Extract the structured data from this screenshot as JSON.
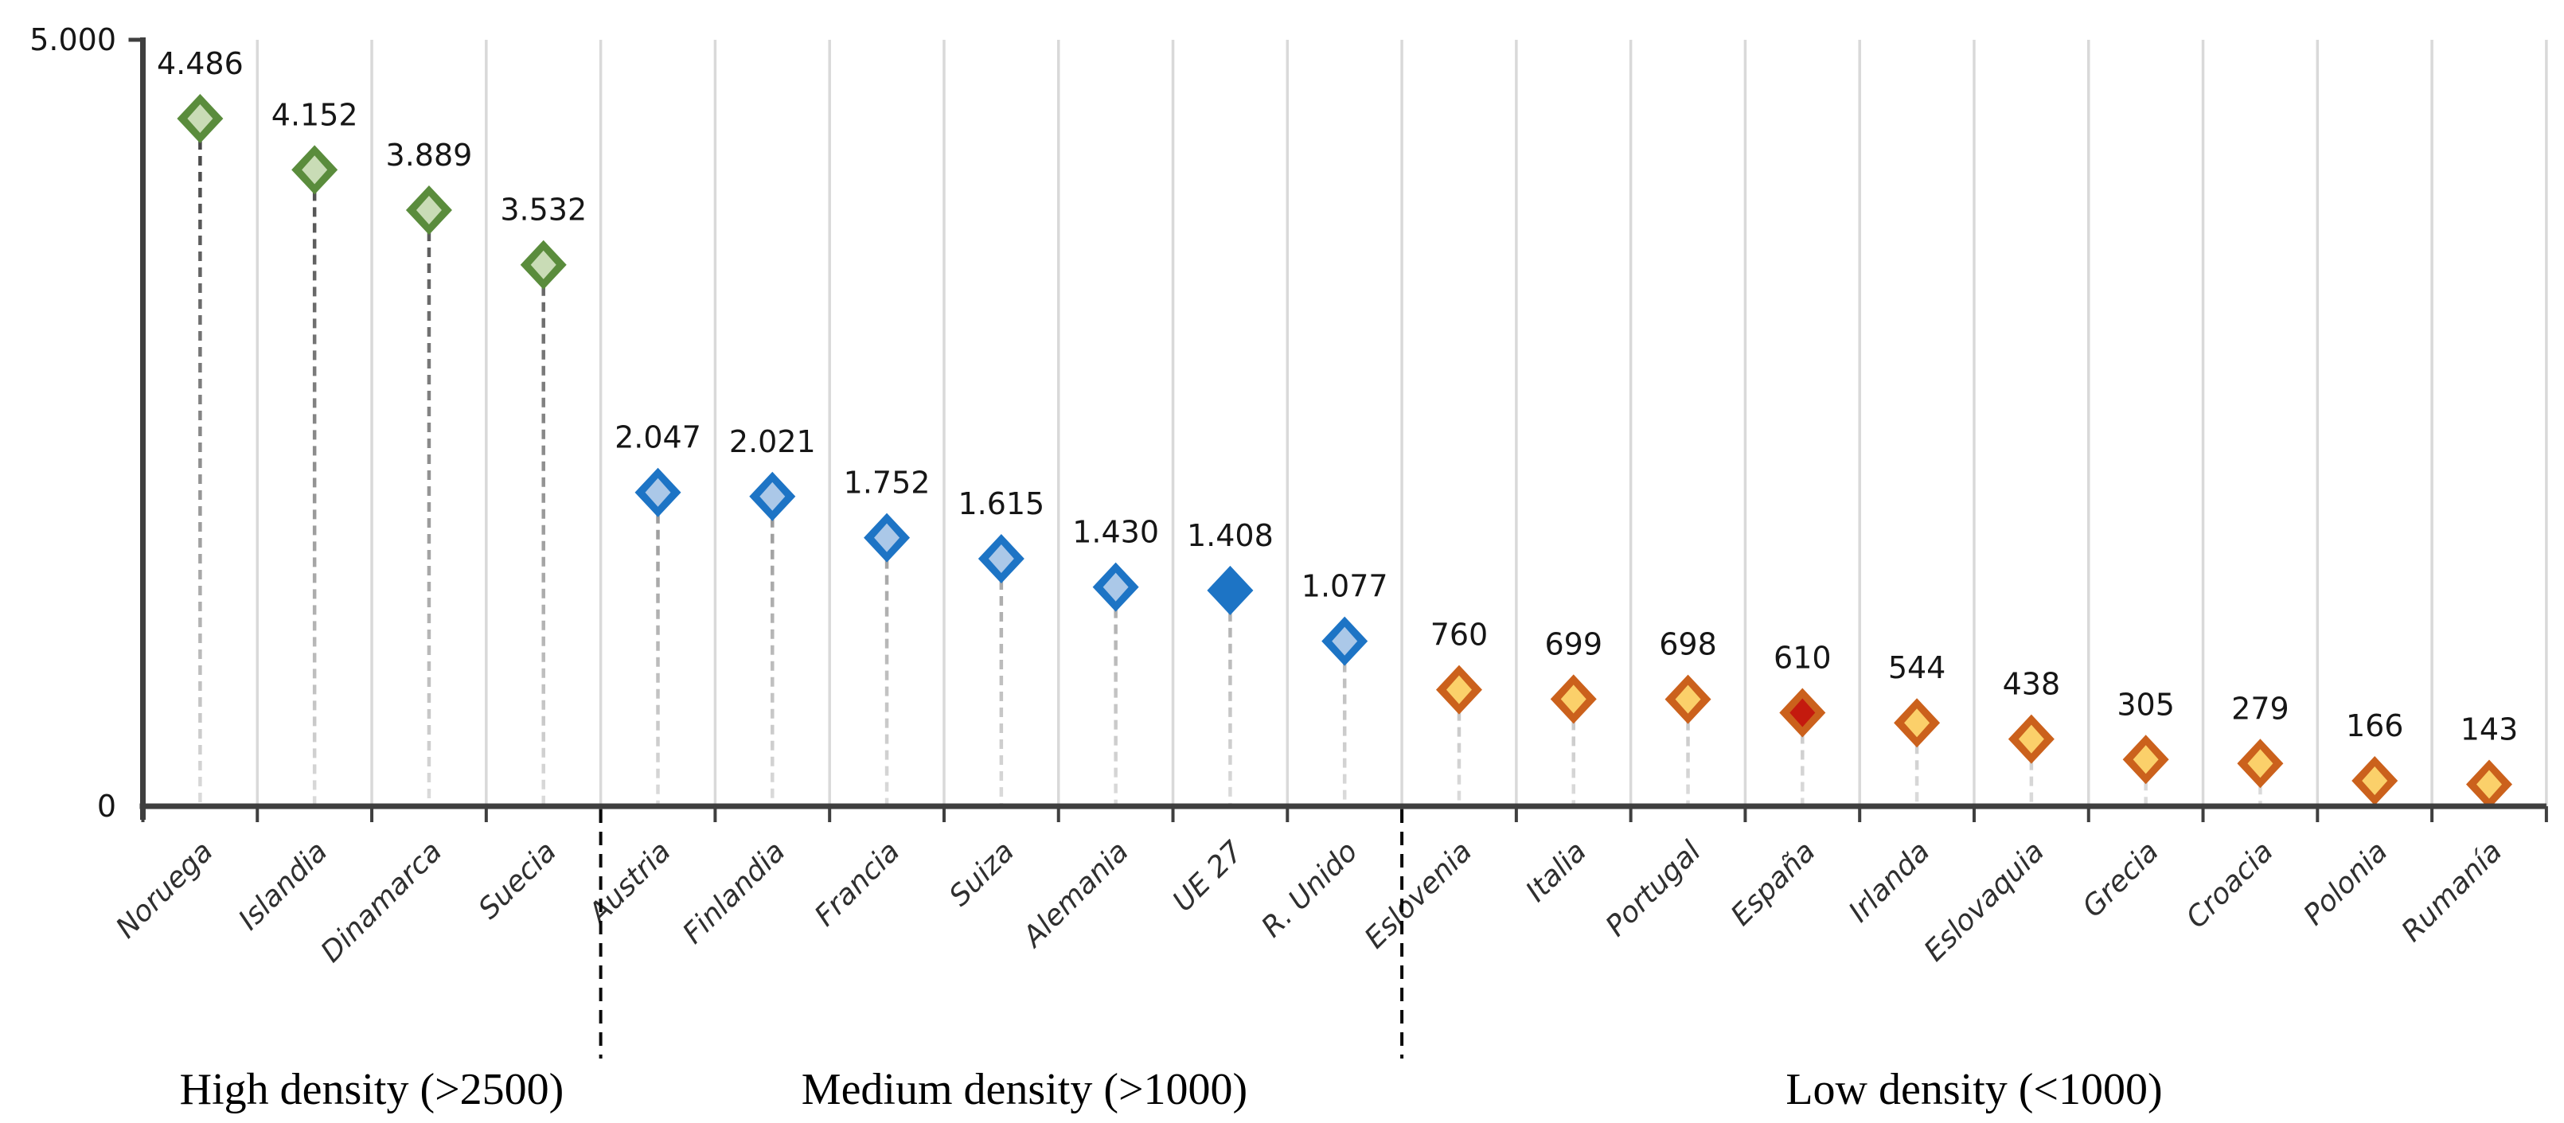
{
  "chart_data": {
    "type": "scatter",
    "title": "",
    "xlabel": "",
    "ylabel": "",
    "ylim": [
      0,
      5000
    ],
    "grid": "vertical-light-gray",
    "legend": "none",
    "marker_shape": "diamond",
    "y_axis": {
      "top_label": "5.000",
      "zero_label": "0"
    },
    "colors": {
      "axis": "#3f3f3f",
      "gridline": "#d9d9d9",
      "divider": "#0a0a0a",
      "value_label": "#161616",
      "x_label": "#2f2f2f",
      "group_label": "#000000",
      "stem_top": "#3c3c3c",
      "stem_bottom": "#dcdcdc"
    },
    "groups": [
      {
        "name": "High density (>2500)",
        "marker_border": "#5a8c3c",
        "marker_fill": "#c9dcb6",
        "points": [
          {
            "label": "Noruega",
            "value": 4486,
            "display": "4.486"
          },
          {
            "label": "Islandia",
            "value": 4152,
            "display": "4.152"
          },
          {
            "label": "Dinamarca",
            "value": 3889,
            "display": "3.889"
          },
          {
            "label": "Suecia",
            "value": 3532,
            "display": "3.532"
          }
        ]
      },
      {
        "name": "Medium density (>1000)",
        "marker_border": "#1d74c5",
        "marker_fill": "#abc8e8",
        "points": [
          {
            "label": "Austria",
            "value": 2047,
            "display": "2.047"
          },
          {
            "label": "Finlandia",
            "value": 2021,
            "display": "2.021"
          },
          {
            "label": "Francia",
            "value": 1752,
            "display": "1.752"
          },
          {
            "label": "Suiza",
            "value": 1615,
            "display": "1.615"
          },
          {
            "label": "Alemania",
            "value": 1430,
            "display": "1.430"
          },
          {
            "label": "UE 27",
            "value": 1408,
            "display": "1.408",
            "fill_override": "#1d74c5"
          },
          {
            "label": "R. Unido",
            "value": 1077,
            "display": "1.077"
          }
        ]
      },
      {
        "name": "Low density (<1000)",
        "marker_border": "#cb611c",
        "marker_fill": "#fbd06a",
        "points": [
          {
            "label": "Eslovenia",
            "value": 760,
            "display": "760"
          },
          {
            "label": "Italia",
            "value": 699,
            "display": "699"
          },
          {
            "label": "Portugal",
            "value": 698,
            "display": "698"
          },
          {
            "label": "España",
            "value": 610,
            "display": "610",
            "fill_override": "#c41a0e"
          },
          {
            "label": "Irlanda",
            "value": 544,
            "display": "544"
          },
          {
            "label": "Eslovaquia",
            "value": 438,
            "display": "438"
          },
          {
            "label": "Grecia",
            "value": 305,
            "display": "305"
          },
          {
            "label": "Croacia",
            "value": 279,
            "display": "279"
          },
          {
            "label": "Polonia",
            "value": 166,
            "display": "166"
          },
          {
            "label": "Rumanía",
            "value": 143,
            "display": "143"
          }
        ]
      }
    ]
  }
}
